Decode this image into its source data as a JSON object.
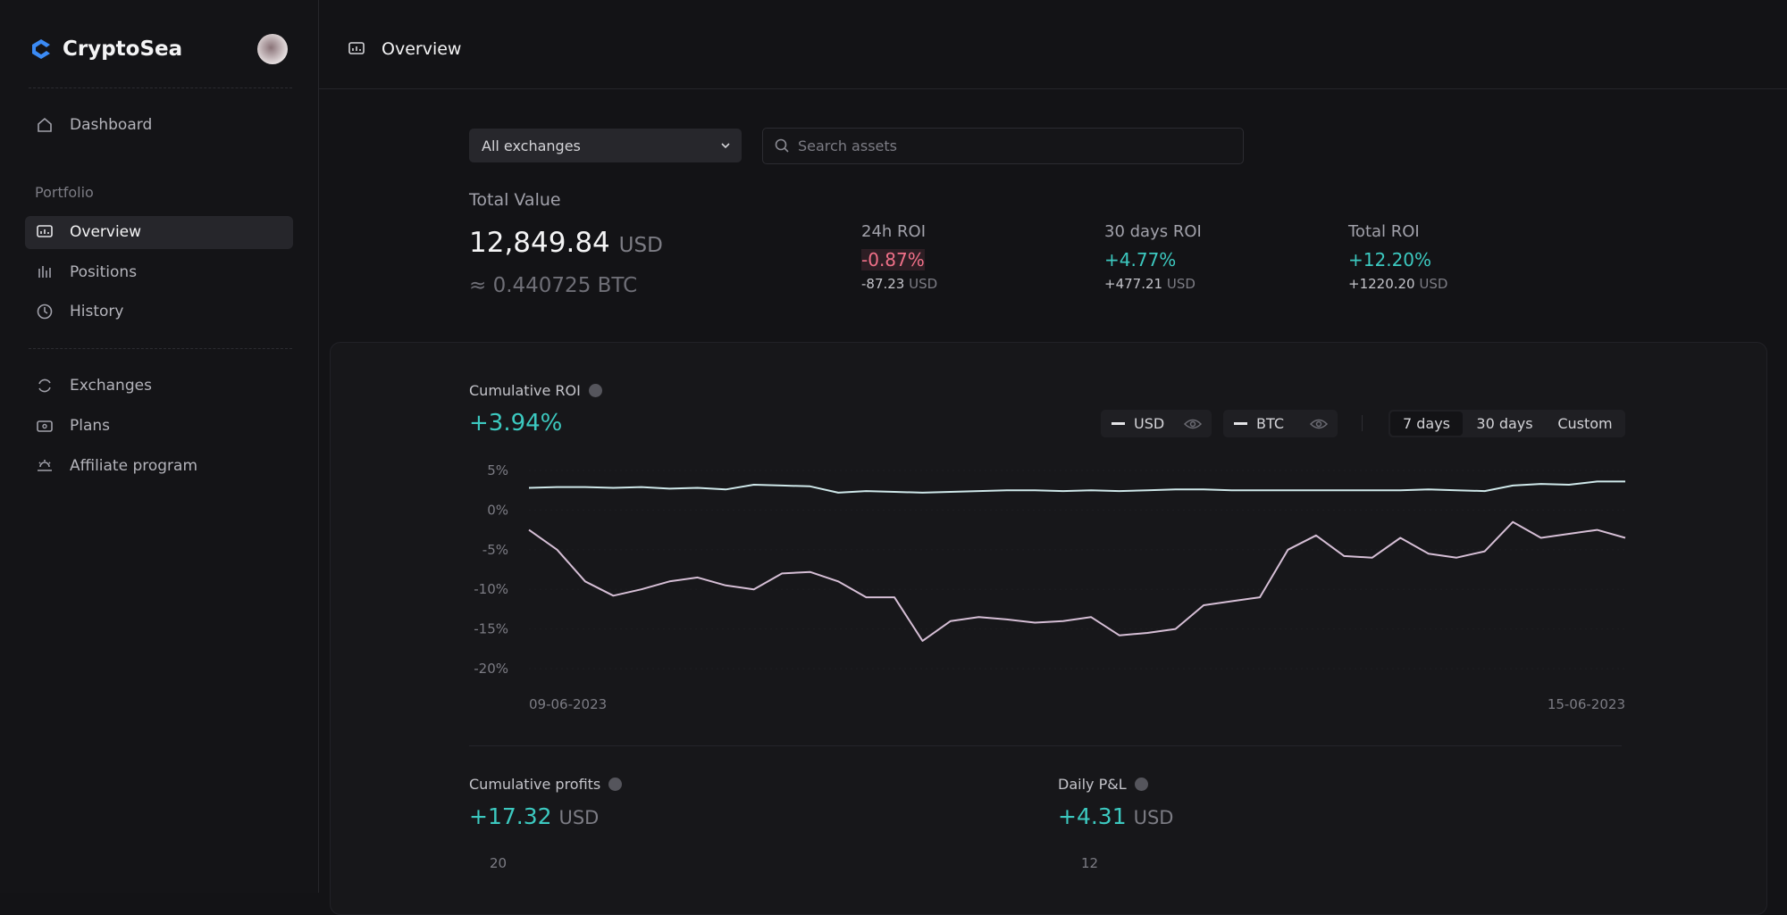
{
  "sidebar": {
    "brand": "CryptoSea",
    "main": [
      "Dashboard"
    ],
    "section": "Portfolio",
    "portfolio": [
      "Overview",
      "Positions",
      "History"
    ],
    "other": [
      "Exchanges",
      "Plans",
      "Affiliate program"
    ]
  },
  "header": {
    "title": "Overview"
  },
  "filters": {
    "exchange": "All exchanges",
    "search_placeholder": "Search assets"
  },
  "summary": {
    "label": "Total Value",
    "value": "12,849.84",
    "unit": "USD",
    "btc": "≈ 0.440725 BTC"
  },
  "stats": [
    {
      "label": "24h ROI",
      "pct": "-0.87%",
      "amount": "-87.23",
      "unit": "USD"
    },
    {
      "label": "30 days ROI",
      "pct": "+4.77%",
      "amount": "+477.21",
      "unit": "USD"
    },
    {
      "label": "Total ROI",
      "pct": "+12.20%",
      "amount": "+1220.20",
      "unit": "USD"
    }
  ],
  "roi_panel": {
    "title": "Cumulative ROI",
    "value": "+3.94%",
    "ranges": [
      "7 days",
      "30 days",
      "Custom"
    ]
  },
  "chart_data": {
    "type": "line",
    "categories": [
      "09-06-2023",
      null,
      null,
      null,
      null,
      null,
      null,
      null,
      null,
      null,
      null,
      null,
      null,
      null,
      null,
      null,
      null,
      null,
      null,
      null,
      null,
      null,
      null,
      null,
      null,
      null,
      null,
      null,
      null,
      null,
      null,
      null,
      null,
      null,
      null,
      null,
      null,
      null,
      null,
      "15-06-2023"
    ],
    "series": [
      {
        "name": "USD",
        "color": "#cfe8ea",
        "values": [
          2.8,
          2.9,
          2.9,
          2.8,
          2.9,
          2.7,
          2.8,
          2.6,
          3.2,
          3.1,
          3.0,
          2.2,
          2.4,
          2.3,
          2.2,
          2.3,
          2.4,
          2.5,
          2.5,
          2.4,
          2.5,
          2.4,
          2.5,
          2.6,
          2.6,
          2.5,
          2.5,
          2.5,
          2.5,
          2.5,
          2.5,
          2.5,
          2.6,
          2.5,
          2.4,
          3.1,
          3.3,
          3.2,
          3.6,
          3.6
        ]
      },
      {
        "name": "BTC",
        "color": "#d6bfd6",
        "values": [
          -2.5,
          -5,
          -9,
          -10.8,
          -10,
          -9,
          -8.5,
          -9.5,
          -10,
          -8,
          -7.8,
          -9,
          -11,
          -11,
          -16.5,
          -14,
          -13.5,
          -13.8,
          -14.2,
          -14,
          -13.5,
          -15.8,
          -15.5,
          -15,
          -12,
          -11.5,
          -11,
          -5,
          -3.2,
          -5.8,
          -6,
          -3.5,
          -5.5,
          -6,
          -5.2,
          -1.5,
          -3.5,
          -3,
          -2.5,
          -3.5
        ]
      }
    ],
    "ylim": [
      -20,
      5
    ],
    "yticks": [
      {
        "value": 5,
        "label": "5%"
      },
      {
        "value": 0,
        "label": "0%"
      },
      {
        "value": -5,
        "label": "-5%"
      },
      {
        "value": -10,
        "label": "-10%"
      },
      {
        "value": -15,
        "label": "-15%"
      },
      {
        "value": -20,
        "label": "-20%"
      }
    ],
    "grid": true
  },
  "profits": {
    "title": "Cumulative profits",
    "value": "+17.32",
    "unit": "USD",
    "tick": "20"
  },
  "daily": {
    "title": "Daily P&L",
    "value": "+4.31",
    "unit": "USD",
    "tick": "12"
  }
}
